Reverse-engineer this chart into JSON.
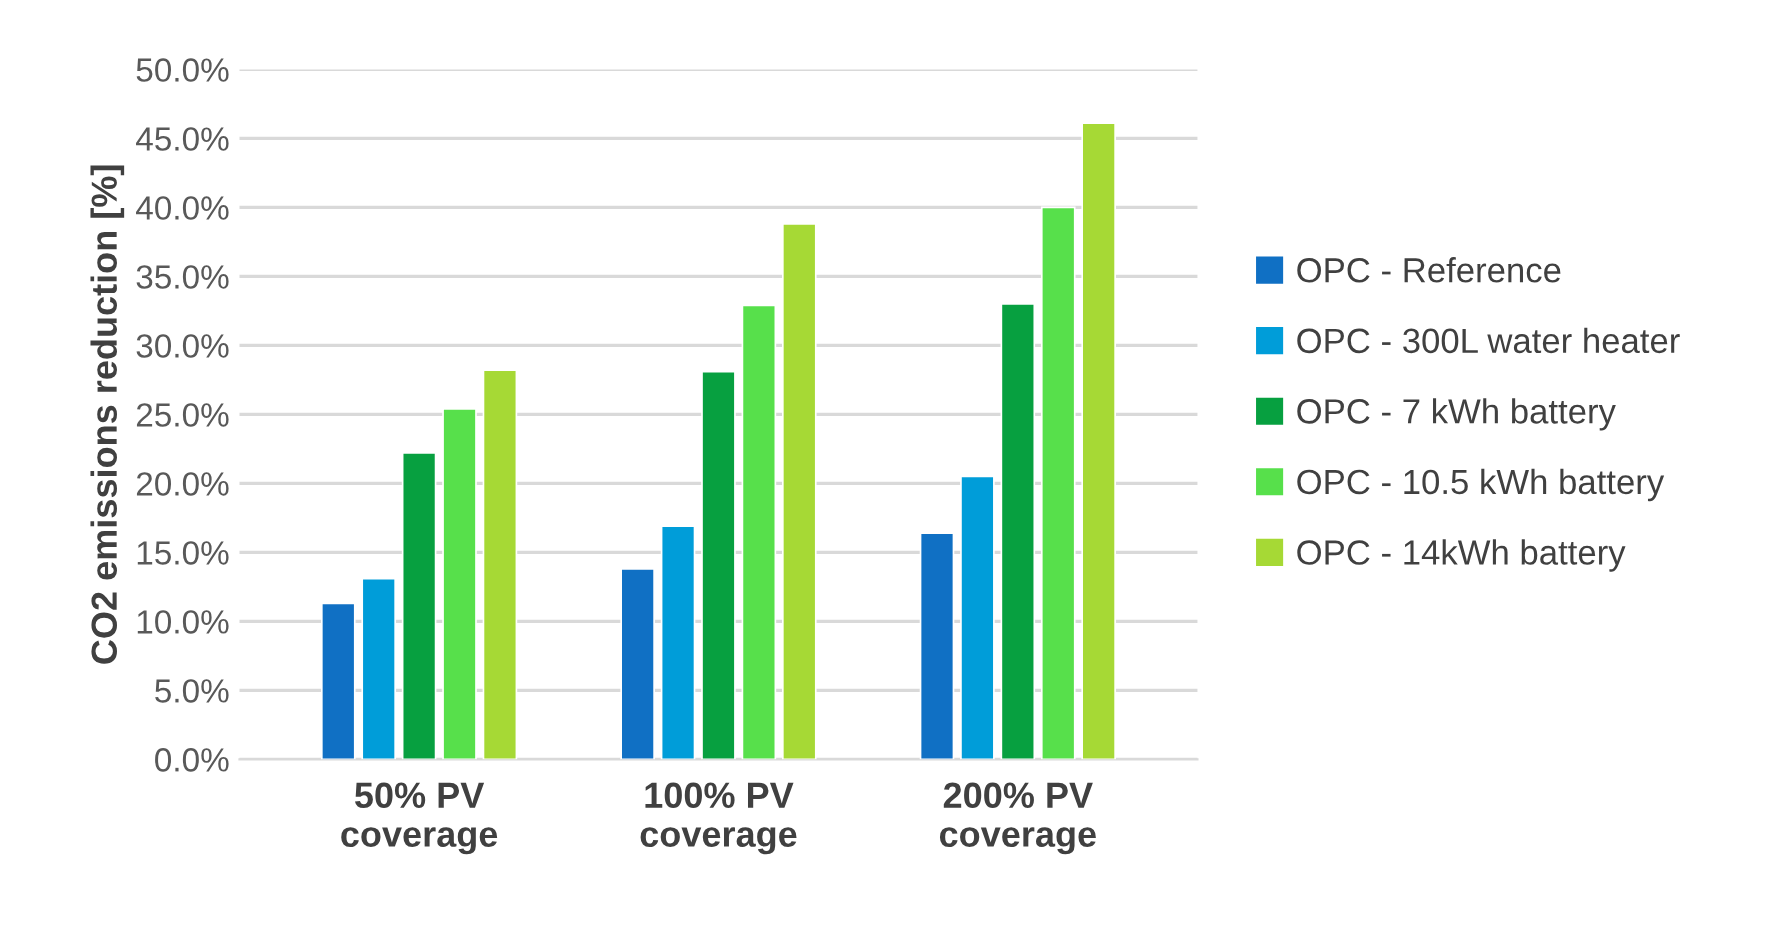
{
  "chart_data": {
    "type": "bar",
    "ylabel": "CO2 emissions reduction [%]",
    "categories": [
      "50% PV\ncoverage",
      "100% PV\ncoverage",
      "200% PV\ncoverage"
    ],
    "series": [
      {
        "name": "OPC - Reference",
        "color": "#1070c4",
        "values": [
          11.3,
          13.8,
          16.4
        ]
      },
      {
        "name": "OPC - 300L water heater",
        "color": "#009dd9",
        "values": [
          13.1,
          16.9,
          20.5
        ]
      },
      {
        "name": "OPC - 7 kWh battery",
        "color": "#07a040",
        "values": [
          22.2,
          28.1,
          33.0
        ]
      },
      {
        "name": "OPC - 10.5 kWh battery",
        "color": "#57e04b",
        "values": [
          25.4,
          32.9,
          40.0
        ]
      },
      {
        "name": "OPC - 14kWh battery",
        "color": "#a6d935",
        "values": [
          28.2,
          38.8,
          46.1
        ]
      }
    ],
    "ylim": [
      0,
      50
    ],
    "yticks": [
      {
        "value": 0,
        "label": "0.0%"
      },
      {
        "value": 5,
        "label": "5.0%"
      },
      {
        "value": 10,
        "label": "10.0%"
      },
      {
        "value": 15,
        "label": "15.0%"
      },
      {
        "value": 20,
        "label": "20.0%"
      },
      {
        "value": 25,
        "label": "25.0%"
      },
      {
        "value": 30,
        "label": "30.0%"
      },
      {
        "value": 35,
        "label": "35.0%"
      },
      {
        "value": 40,
        "label": "40.0%"
      },
      {
        "value": 45,
        "label": "45.0%"
      },
      {
        "value": 50,
        "label": "50.0%"
      }
    ],
    "grid": "y",
    "legend": "right"
  }
}
